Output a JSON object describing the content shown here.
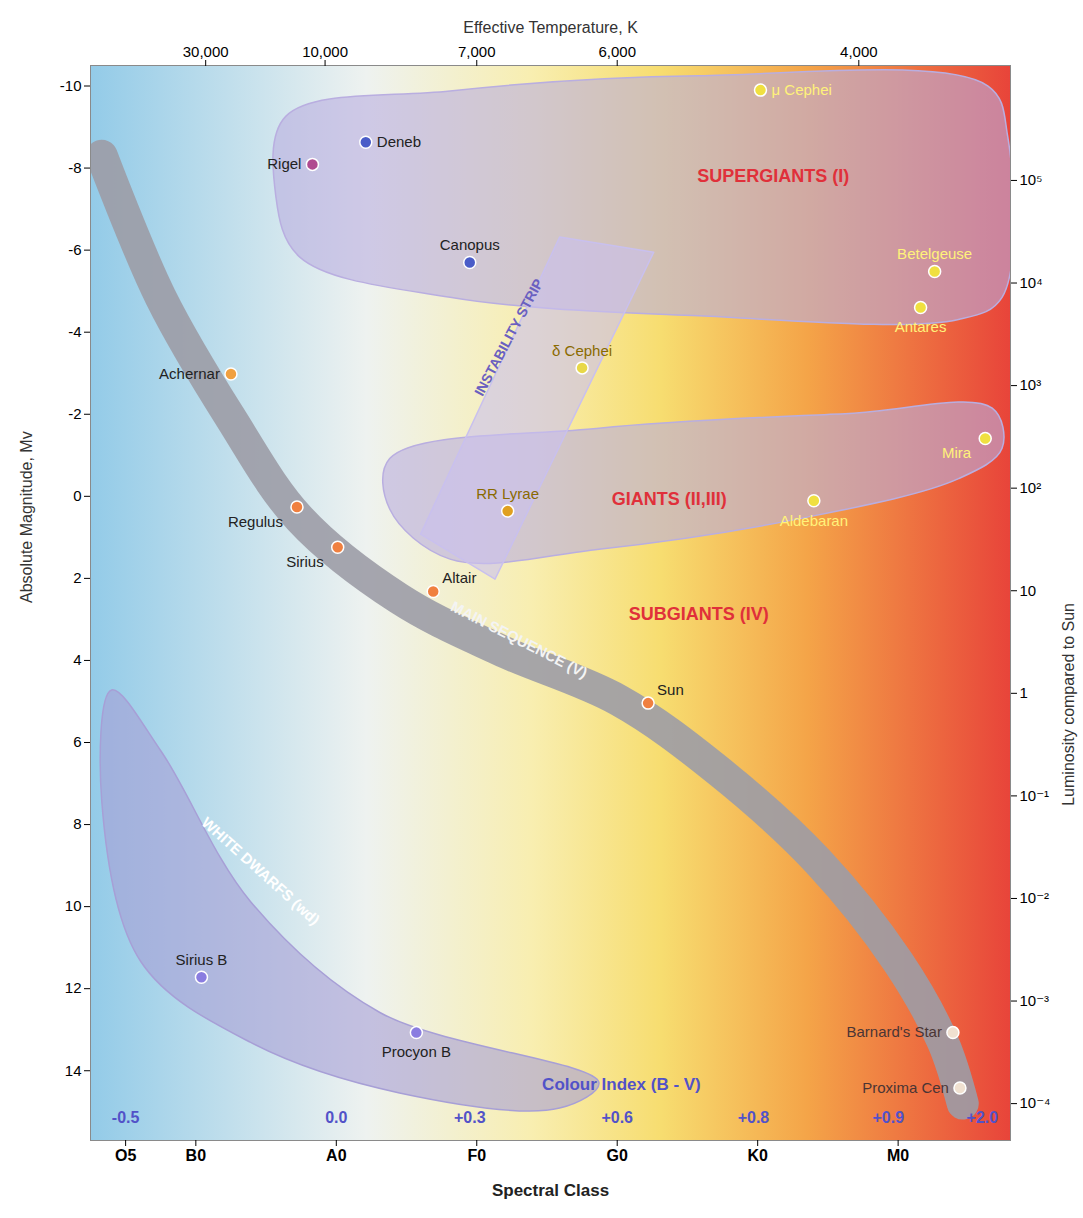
{
  "chart_data": {
    "type": "scatter",
    "x_label": "Spectral Class",
    "x2_label": "Effective Temperature, K",
    "y_label": "Absolute Magnitude, Mv",
    "y2_label": "Luminosity compared to Sun",
    "xlim": [
      -0.75,
      5.8
    ],
    "xticks": [
      {
        "value": -0.5,
        "label": "O5"
      },
      {
        "value": 0,
        "label": "B0"
      },
      {
        "value": 1,
        "label": "A0"
      },
      {
        "value": 2,
        "label": "F0"
      },
      {
        "value": 3,
        "label": "G0"
      },
      {
        "value": 4,
        "label": "K0"
      },
      {
        "value": 5,
        "label": "M0"
      }
    ],
    "temperature_ticks": [
      {
        "value": 30000,
        "label": "30,000",
        "x": 0.07
      },
      {
        "value": 10000,
        "label": "10,000",
        "x": 0.92
      },
      {
        "value": 7000,
        "label": "7,000",
        "x": 2.0
      },
      {
        "value": 6000,
        "label": "6,000",
        "x": 3.0
      },
      {
        "value": 4000,
        "label": "4,000",
        "x": 4.72
      }
    ],
    "ylim": [
      -10.5,
      15.7
    ],
    "yticks": [
      -10,
      -8,
      -6,
      -4,
      -2,
      0,
      2,
      4,
      6,
      8,
      10,
      12,
      14
    ],
    "log": "y2",
    "y2lim": [
      4.37e-05,
      1320000
    ],
    "y2ticks": [
      {
        "value": 100000,
        "label": "10⁵"
      },
      {
        "value": 10000,
        "label": "10⁴"
      },
      {
        "value": 1000,
        "label": "10³"
      },
      {
        "value": 100,
        "label": "10²"
      },
      10,
      1,
      {
        "value": 0.1,
        "label": "10⁻¹"
      },
      {
        "value": 0.01,
        "label": "10⁻²"
      },
      {
        "value": 0.001,
        "label": "10⁻³"
      },
      {
        "value": 0.0001,
        "label": "10⁻⁴"
      }
    ],
    "grid": false,
    "marker": "circle",
    "labels": [
      "Rigel",
      "Deneb",
      "Canopus",
      "Achernar",
      "δ Cephei",
      "RR Lyrae",
      "Regulus",
      "Sirius",
      "Altair",
      "Sun",
      "μ Cephei",
      "Betelgeuse",
      "Antares",
      "Mira",
      "Aldebaran",
      "Sirius B",
      "Procyon B",
      "Barnard's Star",
      "Proxima Cen"
    ],
    "x": [
      0.83,
      1.21,
      1.95,
      0.25,
      2.75,
      2.22,
      0.72,
      1.01,
      1.69,
      3.22,
      4.02,
      5.26,
      5.16,
      5.62,
      4.4,
      0.04,
      1.57,
      5.39,
      5.44
    ],
    "values": [
      -8.09,
      -8.63,
      -5.7,
      -2.98,
      -3.13,
      0.36,
      0.26,
      1.24,
      2.32,
      5.04,
      -9.9,
      -5.48,
      -4.6,
      -1.41,
      0.11,
      11.72,
      13.07,
      13.07,
      14.42
    ],
    "colors": [
      "#b04a90",
      "#4a5cc8",
      "#4a5cc8",
      "#f0a040",
      "#e8d848",
      "#e0a020",
      "#f08040",
      "#f08040",
      "#f08040",
      "#f08040",
      "#f0e040",
      "#f0e040",
      "#f0e040",
      "#f0e040",
      "#f0e040",
      "#8a7de0",
      "#8a7de0",
      "#f0e0d0",
      "#f0e0d0"
    ],
    "regions": [
      {
        "label": "SUPERGIANTS (I)",
        "type": "area",
        "color": "#b9aee0",
        "label_x": 4.11,
        "label_y": -7.79,
        "x": [
          0.64,
          1.81,
          3.58,
          5.64,
          5.78,
          5.74,
          5.43,
          3.58,
          1.81,
          0.74,
          0.57
        ],
        "y": [
          -9.26,
          -9.88,
          -10.25,
          -10.0,
          -8.77,
          -4.85,
          -4.31,
          -4.4,
          -4.85,
          -5.83,
          -7.3
        ]
      },
      {
        "label": "GIANTS (II,III)",
        "type": "area",
        "color": "#b9aee0",
        "label_x": 3.37,
        "label_y": 0.06,
        "x": [
          1.38,
          2.87,
          4.65,
          5.67,
          5.74,
          5.43,
          4.29,
          2.87,
          1.81,
          1.38
        ],
        "y": [
          -0.92,
          -1.66,
          -2.02,
          -2.15,
          -1.17,
          -0.43,
          0.55,
          1.29,
          1.53,
          0.31
        ]
      },
      {
        "label": "MAIN SEQUENCE (V)",
        "type": "line",
        "color": "#9c9ca6",
        "label_x": 2.3,
        "label_y": 3.5,
        "x": [
          -0.67,
          -0.25,
          0.25,
          0.74,
          1.45,
          2.16,
          3.01,
          3.72,
          4.43,
          5.0,
          5.32,
          5.46
        ],
        "y": [
          -8.3,
          -4.85,
          -1.9,
          0.55,
          2.5,
          3.74,
          4.97,
          6.69,
          8.9,
          11.35,
          13.31,
          14.8
        ]
      },
      {
        "label": "WHITE DWARFS (wd)",
        "type": "area",
        "color": "#a79fd6",
        "label_x": 0.46,
        "label_y": 9.14,
        "x": [
          -0.6,
          -0.25,
          0.39,
          1.31,
          2.87,
          2.59,
          1.45,
          0.39,
          -0.39,
          -0.67
        ],
        "y": [
          4.72,
          6.2,
          9.88,
          12.58,
          14.29,
          14.91,
          14.54,
          13.31,
          11.35,
          7.42
        ]
      },
      {
        "label": "INSTABILITY STRIP",
        "type": "area",
        "color": "#c9c0ee",
        "label_x": 2.23,
        "label_y": -3.87,
        "x": [
          1.6,
          2.59,
          3.26,
          2.13
        ],
        "y": [
          0.92,
          -6.32,
          -5.95,
          2.02
        ]
      }
    ],
    "annotations": [
      {
        "text": "SUBGIANTS (IV)",
        "x": 3.58,
        "y": 2.88
      }
    ],
    "colour_index": {
      "label": "Colour Index (B - V)",
      "label_x": 3.03,
      "label_y": 14.34,
      "y": 15.15,
      "x": [
        -0.5,
        1,
        1.95,
        3,
        3.97,
        4.93,
        5.6
      ],
      "values": [
        -0.5,
        0,
        0.3,
        0.6,
        0.8,
        0.9,
        2.0
      ],
      "labels": [
        "-0.5",
        "0.0",
        "+0.3",
        "+0.6",
        "+0.8",
        "+0.9",
        "+2.0"
      ]
    }
  }
}
